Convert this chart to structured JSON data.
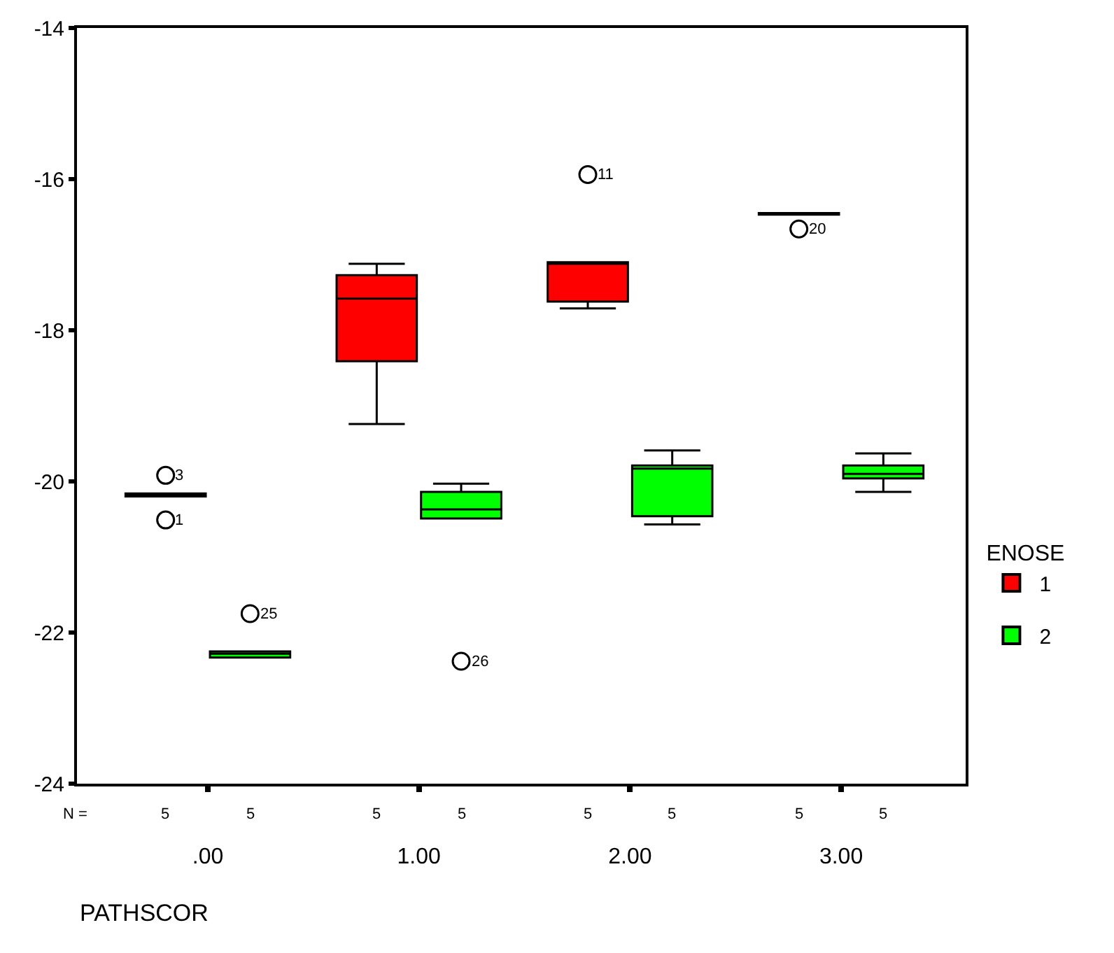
{
  "chart_data": {
    "type": "box",
    "xlabel": "PATHSCOR",
    "legend_title": "ENOSE",
    "categories": [
      ".00",
      "1.00",
      "2.00",
      "3.00"
    ],
    "series": [
      {
        "name": "1",
        "color": "#ff0000",
        "boxes": [
          {
            "low": -20.2,
            "q1": -20.2,
            "median": -20.18,
            "q3": -20.16,
            "high": -20.16,
            "outliers": [
              -19.92,
              -20.51
            ]
          },
          {
            "low": -19.24,
            "q1": -18.41,
            "median": -17.58,
            "q3": -17.27,
            "high": -17.12
          },
          {
            "low": -17.71,
            "q1": -17.62,
            "median": -17.12,
            "q3": -17.1,
            "high": -17.1,
            "outliers": [
              -15.94
            ]
          },
          {
            "low": -16.47,
            "q1": -16.47,
            "median": -16.47,
            "q3": -16.45,
            "high": -16.45,
            "outliers": [
              -16.66
            ]
          }
        ]
      },
      {
        "name": "2",
        "color": "#00ff00",
        "boxes": [
          {
            "low": -22.33,
            "q1": -22.33,
            "median": -22.28,
            "q3": -22.25,
            "high": -22.25,
            "outliers": [
              -21.75
            ]
          },
          {
            "low": -20.49,
            "q1": -20.49,
            "median": -20.37,
            "q3": -20.14,
            "high": -20.03,
            "outliers": [
              -22.38
            ]
          },
          {
            "low": -20.57,
            "q1": -20.46,
            "median": -19.83,
            "q3": -19.79,
            "high": -19.59
          },
          {
            "low": -20.14,
            "q1": -19.96,
            "median": -19.9,
            "q3": -19.79,
            "high": -19.63
          }
        ]
      }
    ],
    "ylim": [
      -24,
      -14
    ],
    "yticks": [
      -24,
      -22,
      -20,
      -18,
      -16,
      -14
    ],
    "legend": "right",
    "marker": "circle",
    "annotations": [
      "3",
      "1",
      "11",
      "20",
      "25",
      "26",
      "N =",
      "5",
      "5",
      "5",
      "5",
      "5",
      "5",
      "5",
      "5"
    ]
  }
}
